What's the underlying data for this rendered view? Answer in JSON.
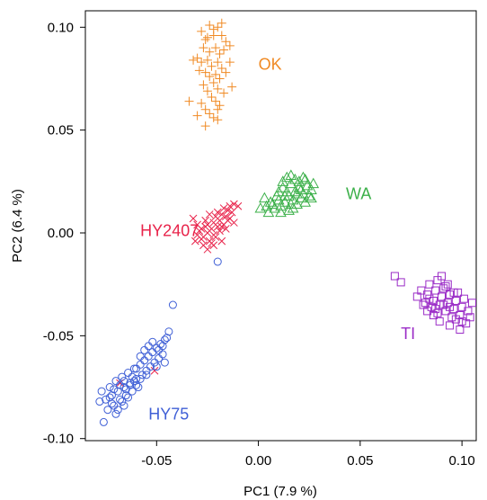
{
  "chart_data": {
    "type": "scatter",
    "title": "",
    "xlabel": "PC1 (7.9 %)",
    "ylabel": "PC2 (6.4 %)",
    "xlim": [
      -0.085,
      0.107
    ],
    "ylim": [
      -0.101,
      0.108
    ],
    "xticks": [
      -0.05,
      0.0,
      0.05,
      0.1
    ],
    "xtick_labels": [
      "-0.05",
      "0.00",
      "0.05",
      "0.10"
    ],
    "yticks": [
      -0.1,
      -0.05,
      0.0,
      0.05,
      0.1
    ],
    "ytick_labels": [
      "-0.10",
      "-0.05",
      "0.00",
      "0.05",
      "0.10"
    ],
    "grid": false,
    "legend": "none",
    "series": [
      {
        "name": "OK",
        "marker": "plus",
        "color": "#F08A24",
        "label_at": [
          0.0,
          0.082
        ],
        "points": [
          [
            -0.028,
            0.098
          ],
          [
            -0.026,
            0.094
          ],
          [
            -0.024,
            0.101
          ],
          [
            -0.022,
            0.099
          ],
          [
            -0.02,
            0.1
          ],
          [
            -0.018,
            0.096
          ],
          [
            -0.016,
            0.093
          ],
          [
            -0.014,
            0.091
          ],
          [
            -0.027,
            0.09
          ],
          [
            -0.024,
            0.088
          ],
          [
            -0.021,
            0.09
          ],
          [
            -0.019,
            0.087
          ],
          [
            -0.017,
            0.089
          ],
          [
            -0.03,
            0.085
          ],
          [
            -0.028,
            0.083
          ],
          [
            -0.025,
            0.084
          ],
          [
            -0.023,
            0.081
          ],
          [
            -0.02,
            0.083
          ],
          [
            -0.018,
            0.08
          ],
          [
            -0.026,
            0.078
          ],
          [
            -0.024,
            0.076
          ],
          [
            -0.021,
            0.077
          ],
          [
            -0.019,
            0.075
          ],
          [
            -0.016,
            0.078
          ],
          [
            -0.014,
            0.083
          ],
          [
            -0.032,
            0.084
          ],
          [
            -0.029,
            0.079
          ],
          [
            -0.022,
            0.073
          ],
          [
            -0.02,
            0.07
          ],
          [
            -0.027,
            0.072
          ],
          [
            -0.025,
            0.069
          ],
          [
            -0.017,
            0.068
          ],
          [
            -0.013,
            0.071
          ],
          [
            -0.023,
            0.066
          ],
          [
            -0.021,
            0.064
          ],
          [
            -0.019,
            0.062
          ],
          [
            -0.028,
            0.063
          ],
          [
            -0.026,
            0.06
          ],
          [
            -0.024,
            0.058
          ],
          [
            -0.022,
            0.056
          ],
          [
            -0.02,
            0.06
          ],
          [
            -0.03,
            0.057
          ],
          [
            -0.034,
            0.064
          ],
          [
            -0.026,
            0.052
          ],
          [
            -0.02,
            0.055
          ],
          [
            -0.022,
            0.096
          ],
          [
            -0.018,
            0.102
          ],
          [
            -0.025,
            0.095
          ]
        ]
      },
      {
        "name": "WA",
        "marker": "triangle",
        "color": "#3CB04A",
        "label_at": [
          0.043,
          0.019
        ],
        "points": [
          [
            0.003,
            0.017
          ],
          [
            0.006,
            0.015
          ],
          [
            0.009,
            0.018
          ],
          [
            0.012,
            0.022
          ],
          [
            0.014,
            0.02
          ],
          [
            0.016,
            0.024
          ],
          [
            0.018,
            0.026
          ],
          [
            0.02,
            0.022
          ],
          [
            0.022,
            0.019
          ],
          [
            0.024,
            0.023
          ],
          [
            0.026,
            0.021
          ],
          [
            0.015,
            0.018
          ],
          [
            0.013,
            0.015
          ],
          [
            0.017,
            0.016
          ],
          [
            0.019,
            0.014
          ],
          [
            0.021,
            0.017
          ],
          [
            0.023,
            0.015
          ],
          [
            0.011,
            0.013
          ],
          [
            0.008,
            0.012
          ],
          [
            0.01,
            0.016
          ],
          [
            0.012,
            0.025
          ],
          [
            0.014,
            0.027
          ],
          [
            0.016,
            0.028
          ],
          [
            0.018,
            0.02
          ],
          [
            0.02,
            0.025
          ],
          [
            0.022,
            0.027
          ],
          [
            0.025,
            0.018
          ],
          [
            0.027,
            0.024
          ],
          [
            0.005,
            0.01
          ],
          [
            0.007,
            0.014
          ],
          [
            0.01,
            0.02
          ],
          [
            0.015,
            0.011
          ],
          [
            0.017,
            0.012
          ],
          [
            0.019,
            0.019
          ],
          [
            0.021,
            0.021
          ],
          [
            0.023,
            0.026
          ],
          [
            0.001,
            0.012
          ],
          [
            0.004,
            0.013
          ],
          [
            0.026,
            0.017
          ],
          [
            0.013,
            0.018
          ],
          [
            0.011,
            0.01
          ],
          [
            0.016,
            0.014
          ]
        ]
      },
      {
        "name": "HY2407",
        "marker": "cross",
        "color": "#E8234A",
        "label_at": [
          -0.058,
          0.001
        ],
        "points": [
          [
            -0.032,
            0.007
          ],
          [
            -0.03,
            0.004
          ],
          [
            -0.029,
            0.001
          ],
          [
            -0.027,
            -0.002
          ],
          [
            -0.026,
            0.003
          ],
          [
            -0.025,
            0.0
          ],
          [
            -0.024,
            -0.004
          ],
          [
            -0.023,
            0.002
          ],
          [
            -0.022,
            0.005
          ],
          [
            -0.021,
            0.008
          ],
          [
            -0.02,
            0.01
          ],
          [
            -0.019,
            0.006
          ],
          [
            -0.018,
            0.009
          ],
          [
            -0.017,
            0.012
          ],
          [
            -0.016,
            0.008
          ],
          [
            -0.015,
            0.011
          ],
          [
            -0.014,
            0.013
          ],
          [
            -0.013,
            0.01
          ],
          [
            -0.012,
            0.014
          ],
          [
            -0.028,
            -0.003
          ],
          [
            -0.027,
            -0.006
          ],
          [
            -0.025,
            -0.008
          ],
          [
            -0.023,
            -0.005
          ],
          [
            -0.021,
            -0.002
          ],
          [
            -0.019,
            0.001
          ],
          [
            -0.017,
            0.004
          ],
          [
            -0.015,
            0.006
          ],
          [
            -0.022,
            -0.001
          ],
          [
            -0.02,
            0.003
          ],
          [
            -0.018,
            0.003
          ],
          [
            -0.016,
            0.002
          ],
          [
            -0.014,
            0.007
          ],
          [
            -0.03,
            -0.001
          ],
          [
            -0.026,
            0.006
          ],
          [
            -0.024,
            0.009
          ],
          [
            -0.028,
            0.002
          ],
          [
            -0.031,
            -0.004
          ],
          [
            -0.022,
            -0.006
          ],
          [
            -0.018,
            -0.004
          ],
          [
            -0.025,
            0.004
          ],
          [
            -0.01,
            0.013
          ],
          [
            -0.012,
            0.005
          ],
          [
            -0.051,
            -0.067
          ],
          [
            -0.068,
            -0.073
          ]
        ]
      },
      {
        "name": "HY75",
        "marker": "circle",
        "color": "#3F5FD6",
        "label_at": [
          -0.054,
          -0.088
        ],
        "points": [
          [
            -0.077,
            -0.077
          ],
          [
            -0.075,
            -0.081
          ],
          [
            -0.073,
            -0.075
          ],
          [
            -0.072,
            -0.079
          ],
          [
            -0.071,
            -0.084
          ],
          [
            -0.07,
            -0.072
          ],
          [
            -0.069,
            -0.077
          ],
          [
            -0.068,
            -0.081
          ],
          [
            -0.067,
            -0.07
          ],
          [
            -0.066,
            -0.075
          ],
          [
            -0.065,
            -0.079
          ],
          [
            -0.064,
            -0.068
          ],
          [
            -0.063,
            -0.073
          ],
          [
            -0.062,
            -0.077
          ],
          [
            -0.061,
            -0.066
          ],
          [
            -0.06,
            -0.071
          ],
          [
            -0.059,
            -0.075
          ],
          [
            -0.058,
            -0.064
          ],
          [
            -0.057,
            -0.069
          ],
          [
            -0.056,
            -0.062
          ],
          [
            -0.055,
            -0.067
          ],
          [
            -0.054,
            -0.06
          ],
          [
            -0.053,
            -0.065
          ],
          [
            -0.052,
            -0.058
          ],
          [
            -0.051,
            -0.063
          ],
          [
            -0.05,
            -0.056
          ],
          [
            -0.049,
            -0.061
          ],
          [
            -0.048,
            -0.054
          ],
          [
            -0.047,
            -0.059
          ],
          [
            -0.046,
            -0.052
          ],
          [
            -0.074,
            -0.086
          ],
          [
            -0.07,
            -0.088
          ],
          [
            -0.066,
            -0.084
          ],
          [
            -0.064,
            -0.08
          ],
          [
            -0.062,
            -0.07
          ],
          [
            -0.06,
            -0.066
          ],
          [
            -0.058,
            -0.06
          ],
          [
            -0.056,
            -0.057
          ],
          [
            -0.054,
            -0.055
          ],
          [
            -0.052,
            -0.053
          ],
          [
            -0.068,
            -0.074
          ],
          [
            -0.066,
            -0.072
          ],
          [
            -0.071,
            -0.076
          ],
          [
            -0.076,
            -0.092
          ],
          [
            -0.072,
            -0.083
          ],
          [
            -0.069,
            -0.086
          ],
          [
            -0.067,
            -0.082
          ],
          [
            -0.065,
            -0.076
          ],
          [
            -0.063,
            -0.074
          ],
          [
            -0.061,
            -0.072
          ],
          [
            -0.045,
            -0.051
          ],
          [
            -0.047,
            -0.055
          ],
          [
            -0.049,
            -0.057
          ],
          [
            -0.044,
            -0.048
          ],
          [
            -0.058,
            -0.071
          ],
          [
            -0.06,
            -0.074
          ],
          [
            -0.073,
            -0.08
          ],
          [
            -0.078,
            -0.082
          ],
          [
            -0.042,
            -0.035
          ],
          [
            -0.02,
            -0.014
          ],
          [
            -0.05,
            -0.065
          ],
          [
            -0.055,
            -0.069
          ],
          [
            -0.046,
            -0.063
          ]
        ]
      },
      {
        "name": "TI",
        "marker": "square",
        "color": "#9B2DC7",
        "label_at": [
          0.07,
          -0.049
        ],
        "points": [
          [
            0.067,
            -0.021
          ],
          [
            0.07,
            -0.024
          ],
          [
            0.078,
            -0.031
          ],
          [
            0.08,
            -0.028
          ],
          [
            0.082,
            -0.034
          ],
          [
            0.083,
            -0.03
          ],
          [
            0.084,
            -0.025
          ],
          [
            0.085,
            -0.036
          ],
          [
            0.086,
            -0.033
          ],
          [
            0.087,
            -0.028
          ],
          [
            0.088,
            -0.039
          ],
          [
            0.089,
            -0.035
          ],
          [
            0.09,
            -0.031
          ],
          [
            0.091,
            -0.027
          ],
          [
            0.092,
            -0.038
          ],
          [
            0.093,
            -0.034
          ],
          [
            0.094,
            -0.03
          ],
          [
            0.095,
            -0.041
          ],
          [
            0.096,
            -0.037
          ],
          [
            0.097,
            -0.033
          ],
          [
            0.098,
            -0.029
          ],
          [
            0.099,
            -0.04
          ],
          [
            0.1,
            -0.036
          ],
          [
            0.101,
            -0.032
          ],
          [
            0.102,
            -0.044
          ],
          [
            0.103,
            -0.038
          ],
          [
            0.104,
            -0.041
          ],
          [
            0.088,
            -0.023
          ],
          [
            0.09,
            -0.021
          ],
          [
            0.092,
            -0.026
          ],
          [
            0.086,
            -0.04
          ],
          [
            0.089,
            -0.043
          ],
          [
            0.094,
            -0.045
          ],
          [
            0.097,
            -0.042
          ],
          [
            0.083,
            -0.038
          ],
          [
            0.081,
            -0.035
          ],
          [
            0.1,
            -0.043
          ],
          [
            0.099,
            -0.047
          ],
          [
            0.091,
            -0.035
          ],
          [
            0.094,
            -0.036
          ],
          [
            0.093,
            -0.025
          ],
          [
            0.105,
            -0.034
          ],
          [
            0.084,
            -0.032
          ],
          [
            0.087,
            -0.037
          ],
          [
            0.096,
            -0.029
          ]
        ]
      }
    ]
  }
}
